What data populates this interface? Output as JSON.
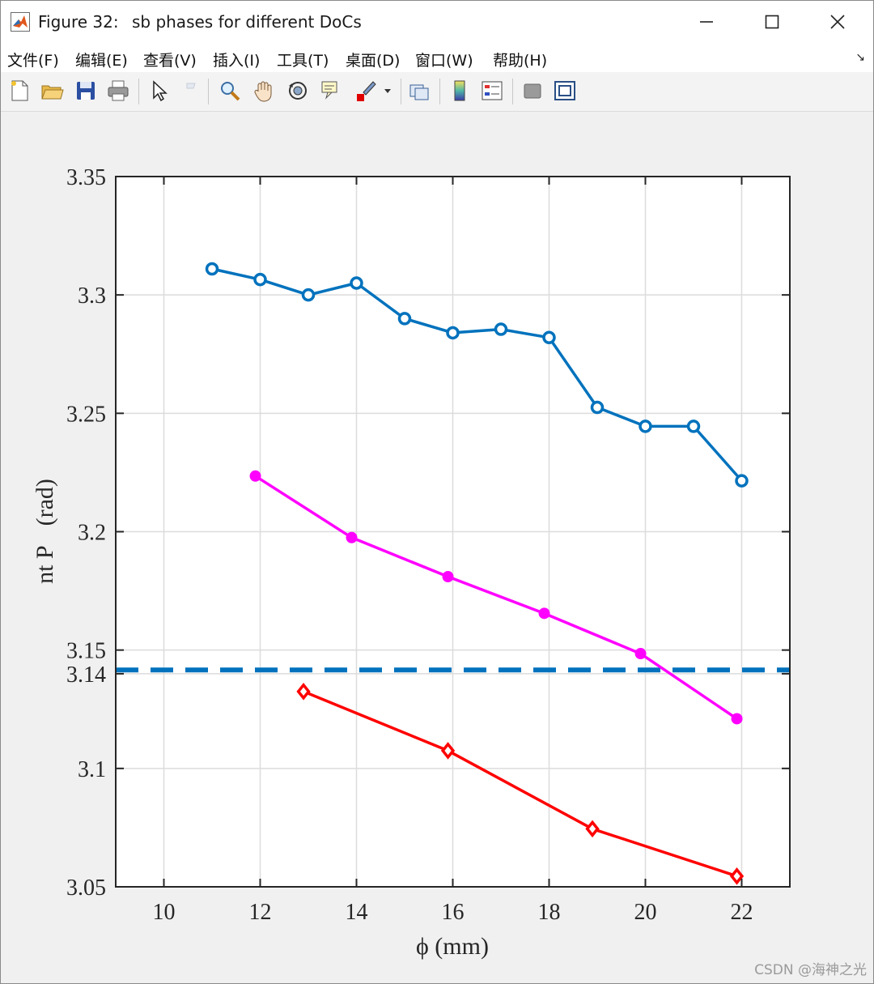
{
  "window": {
    "title": "Figure 32: \u0000sb phases for different DoCs",
    "title_display": "Figure 32:  sb phases for different DoCs",
    "minimize": "—",
    "maximize": "☐",
    "close": "✕"
  },
  "menu": {
    "items": [
      "文件(F)",
      "编辑(E)",
      "查看(V)",
      "插入(I)",
      "工具(T)",
      "桌面(D)",
      "窗口(W)",
      "帮助(H)"
    ],
    "overflow_icon": "arrow-icon"
  },
  "toolbar": {
    "icons": [
      "new-figure-icon",
      "open-icon",
      "save-icon",
      "print-icon",
      "select-pointer-icon",
      "brush-disabled-icon",
      "zoom-icon",
      "pan-icon",
      "rotate-icon",
      "data-tips-icon",
      "brush-icon",
      "dropdown-arrow-icon",
      "link-plot-icon",
      "colorbar-icon",
      "legend-icon",
      "hide-plot-tools-icon",
      "show-plot-tools-icon"
    ]
  },
  "chart_data": {
    "type": "line",
    "xlabel": "ϕ (mm)",
    "ylabel": "nt P    (rad)",
    "xlim": [
      9,
      23
    ],
    "ylim": [
      3.05,
      3.35
    ],
    "xticks": [
      "10",
      "12",
      "14",
      "16",
      "18",
      "20",
      "22"
    ],
    "yticks": [
      "3.05",
      "3.1",
      "3.14",
      "3.15",
      "3.2",
      "3.25",
      "3.3",
      "3.35"
    ],
    "ytick_values": [
      3.05,
      3.1,
      3.14,
      3.15,
      3.2,
      3.25,
      3.3,
      3.35
    ],
    "grid": true,
    "series": [
      {
        "color": "#0072bd",
        "marker": "circle-open",
        "x": [
          11,
          12,
          13,
          14,
          15,
          16,
          17,
          18,
          19,
          20,
          21,
          22
        ],
        "y": [
          3.311,
          3.3065,
          3.3,
          3.305,
          3.29,
          3.284,
          3.2855,
          3.282,
          3.2525,
          3.2445,
          3.2445,
          3.2215
        ]
      },
      {
        "color": "#ff00ff",
        "marker": "circle-filled",
        "x": [
          11.9,
          13.9,
          15.9,
          17.9,
          19.9,
          21.9
        ],
        "y": [
          3.2235,
          3.1975,
          3.181,
          3.1655,
          3.1485,
          3.121
        ]
      },
      {
        "color": "#ff0000",
        "marker": "diamond-open",
        "x": [
          12.9,
          15.9,
          18.9,
          21.9
        ],
        "y": [
          3.1325,
          3.1075,
          3.0745,
          3.0545
        ]
      }
    ],
    "reference_line": {
      "y": 3.14159,
      "color": "#0072bd",
      "style": "dashed"
    }
  },
  "watermark": "CSDN @海神之光"
}
